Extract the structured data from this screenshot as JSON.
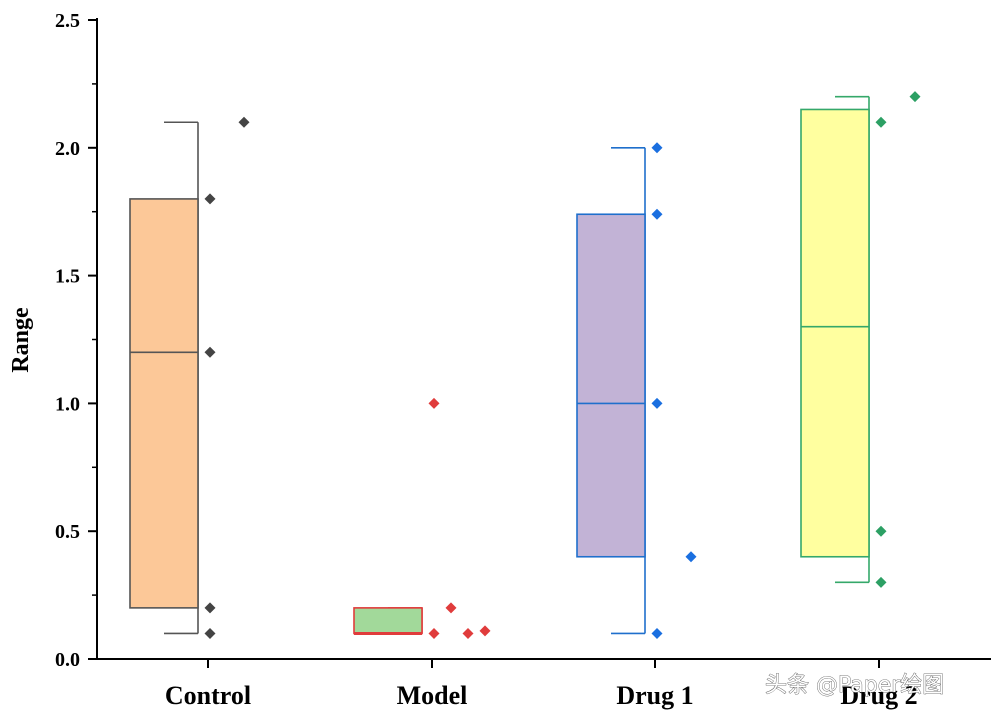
{
  "chart_data": {
    "type": "box",
    "ylabel": "Range",
    "xlabel": "",
    "ylim": [
      0,
      2.5
    ],
    "yticks": [
      "0.0",
      "0.5",
      "1.0",
      "1.5",
      "2.0",
      "2.5"
    ],
    "grid": false,
    "categories": [
      "Control",
      "Model",
      "Drug 1",
      "Drug 2"
    ],
    "boxes": [
      {
        "category": "Control",
        "whisker_low": 0.1,
        "q1": 0.2,
        "median": 1.2,
        "q3": 1.8,
        "whisker_high": 2.1,
        "points": [
          0.1,
          0.2,
          1.2,
          1.8,
          2.1
        ],
        "fill": "#FCC898",
        "stroke": "#555555",
        "point_color": "#444444"
      },
      {
        "category": "Model",
        "whisker_low": 0.1,
        "q1": 0.1,
        "median": 0.1,
        "q3": 0.2,
        "whisker_high": 0.2,
        "points": [
          1.0,
          0.1,
          0.2,
          0.1,
          0.11
        ],
        "fill": "#A2D99A",
        "stroke": "#E03C3C",
        "point_color": "#E03C3C"
      },
      {
        "category": "Drug 1",
        "whisker_low": 0.1,
        "q1": 0.4,
        "median": 1.0,
        "q3": 1.74,
        "whisker_high": 2.0,
        "points": [
          0.1,
          1.0,
          1.74,
          2.0,
          0.4
        ],
        "fill": "#C2B3D6",
        "stroke": "#1F6FCC",
        "point_color": "#1A6FE0"
      },
      {
        "category": "Drug 2",
        "whisker_low": 0.3,
        "q1": 0.4,
        "median": 1.3,
        "q3": 2.15,
        "whisker_high": 2.2,
        "points": [
          0.3,
          0.5,
          2.1,
          2.2
        ],
        "fill": "#FFFF9F",
        "stroke": "#35A86A",
        "point_color": "#2CA064"
      }
    ]
  },
  "watermark": "头条 @Paper绘图"
}
